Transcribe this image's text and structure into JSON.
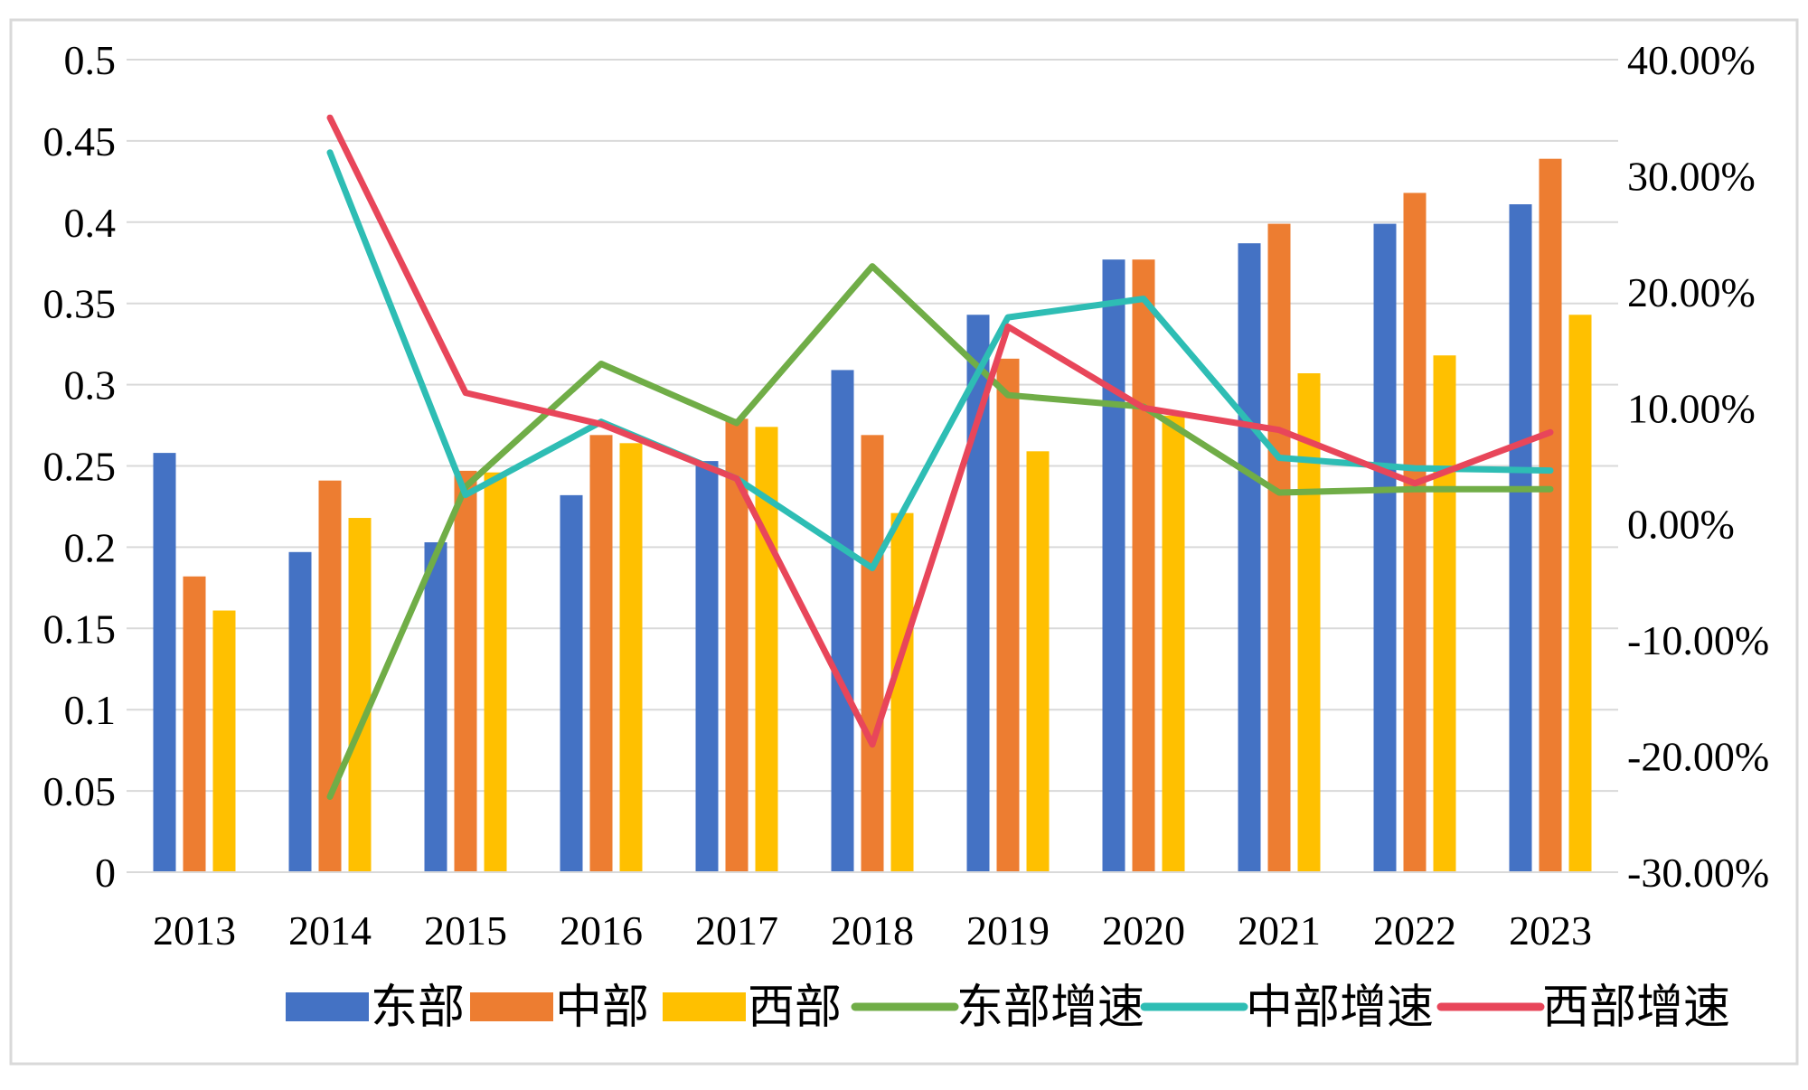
{
  "colors": {
    "east": "#4472C4",
    "central": "#ED7D31",
    "west": "#FFC000",
    "east_growth": "#70AD47",
    "central_growth": "#2EBDB4",
    "west_growth": "#E8465A",
    "grid": "#D9D9D9",
    "frame": "#D9D9D9"
  },
  "chart_data": {
    "type": "bar",
    "title": "",
    "xlabel": "",
    "ylabel": "",
    "categories": [
      "2013",
      "2014",
      "2015",
      "2016",
      "2017",
      "2018",
      "2019",
      "2020",
      "2021",
      "2022",
      "2023"
    ],
    "ylim": [
      0,
      0.5
    ],
    "yticks": [
      "0",
      "0.05",
      "0.1",
      "0.15",
      "0.2",
      "0.25",
      "0.3",
      "0.35",
      "0.4",
      "0.45",
      "0.5"
    ],
    "y2lim": [
      -0.3,
      0.4
    ],
    "y2ticks": [
      "-30.00%",
      "-20.00%",
      "-10.00%",
      "0.00%",
      "10.00%",
      "20.00%",
      "30.00%",
      "40.00%"
    ],
    "grid": true,
    "legend_position": "bottom",
    "series": [
      {
        "name": "东部",
        "kind": "bar",
        "axis": "left",
        "color_key": "east",
        "values": [
          0.258,
          0.197,
          0.203,
          0.232,
          0.253,
          0.309,
          0.343,
          0.377,
          0.387,
          0.399,
          0.411
        ]
      },
      {
        "name": "中部",
        "kind": "bar",
        "axis": "left",
        "color_key": "central",
        "values": [
          0.182,
          0.241,
          0.247,
          0.269,
          0.279,
          0.269,
          0.316,
          0.377,
          0.399,
          0.418,
          0.439
        ]
      },
      {
        "name": "西部",
        "kind": "bar",
        "axis": "left",
        "color_key": "west",
        "values": [
          0.161,
          0.218,
          0.246,
          0.264,
          0.274,
          0.221,
          0.259,
          0.281,
          0.307,
          0.318,
          0.343
        ]
      },
      {
        "name": "东部增速",
        "kind": "line",
        "axis": "right",
        "color_key": "east_growth",
        "values": [
          null,
          -0.235,
          0.032,
          0.138,
          0.087,
          0.222,
          0.111,
          0.101,
          0.027,
          0.03,
          0.03
        ]
      },
      {
        "name": "中部增速",
        "kind": "line",
        "axis": "right",
        "color_key": "central_growth",
        "values": [
          null,
          0.32,
          0.025,
          0.088,
          0.039,
          -0.038,
          0.178,
          0.194,
          0.057,
          0.048,
          0.046
        ]
      },
      {
        "name": "西部增速",
        "kind": "line",
        "axis": "right",
        "color_key": "west_growth",
        "values": [
          null,
          0.35,
          0.113,
          0.086,
          0.039,
          -0.19,
          0.17,
          0.1,
          0.081,
          0.035,
          0.079
        ]
      }
    ]
  }
}
